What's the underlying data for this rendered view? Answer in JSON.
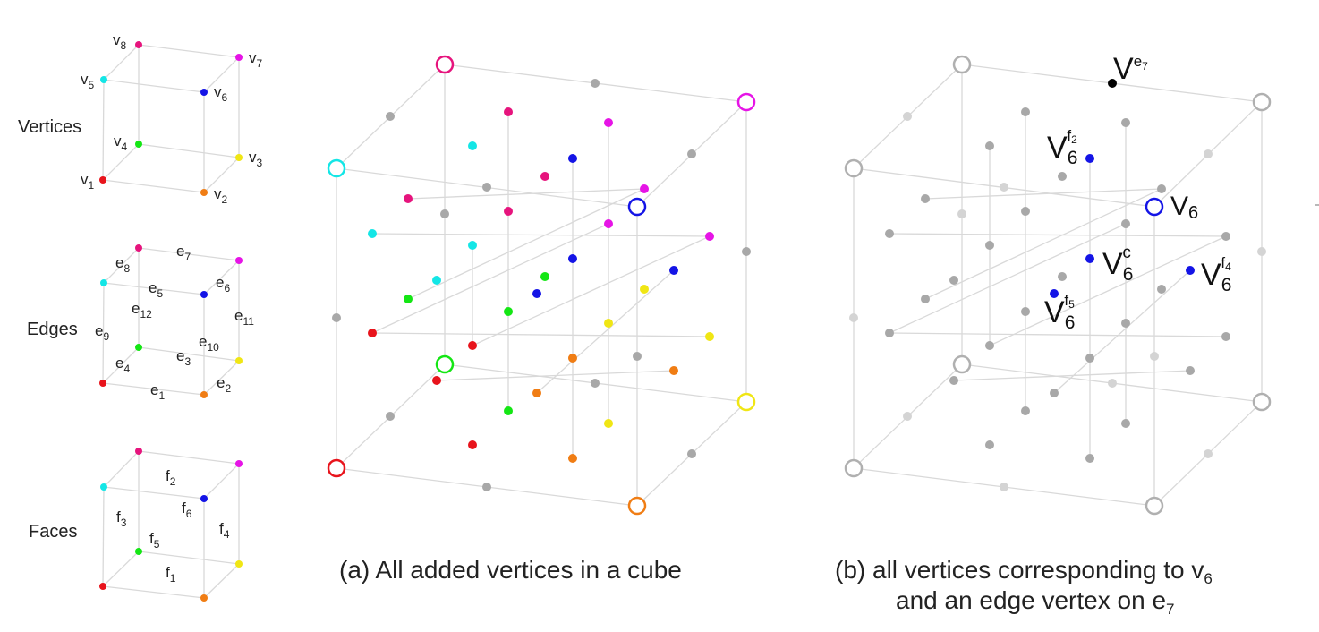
{
  "panel_titles": {
    "vertices": "Vertices",
    "edges": "Edges",
    "faces": "Faces"
  },
  "vertex_labels": {
    "v1": "v1",
    "v2": "v2",
    "v3": "v3",
    "v4": "v4",
    "v5": "v5",
    "v6": "v6",
    "v7": "v7",
    "v8": "v8"
  },
  "edge_labels": {
    "e1": "e1",
    "e2": "e2",
    "e3": "e3",
    "e4": "e4",
    "e5": "e5",
    "e6": "e6",
    "e7": "e7",
    "e8": "e8",
    "e9": "e9",
    "e10": "e10",
    "e11": "e11",
    "e12": "e12"
  },
  "face_labels": {
    "f1": "f1",
    "f2": "f2",
    "f3": "f3",
    "f4": "f4",
    "f5": "f5",
    "f6": "f6"
  },
  "captions": {
    "a": "(a) All added vertices in a cube",
    "b_line1": "(b) all vertices corresponding to v6",
    "b_line2": "and an edge vertex on e7"
  },
  "annotations": {
    "V6": "V6",
    "V6c": "V6c",
    "V6f2": "V6f2",
    "V6f4": "V6f4",
    "V6f5": "V6f5",
    "Ve7": "Ve7"
  },
  "colors": {
    "v1": "#e8141c",
    "v2": "#f07d14",
    "v3": "#f0e614",
    "v4": "#14e614",
    "v5": "#14e6e6",
    "v6": "#1414e6",
    "v7": "#e614e6",
    "v8": "#e6147d",
    "gray": "#a8a8a8",
    "edge_vertex": "#000000"
  }
}
